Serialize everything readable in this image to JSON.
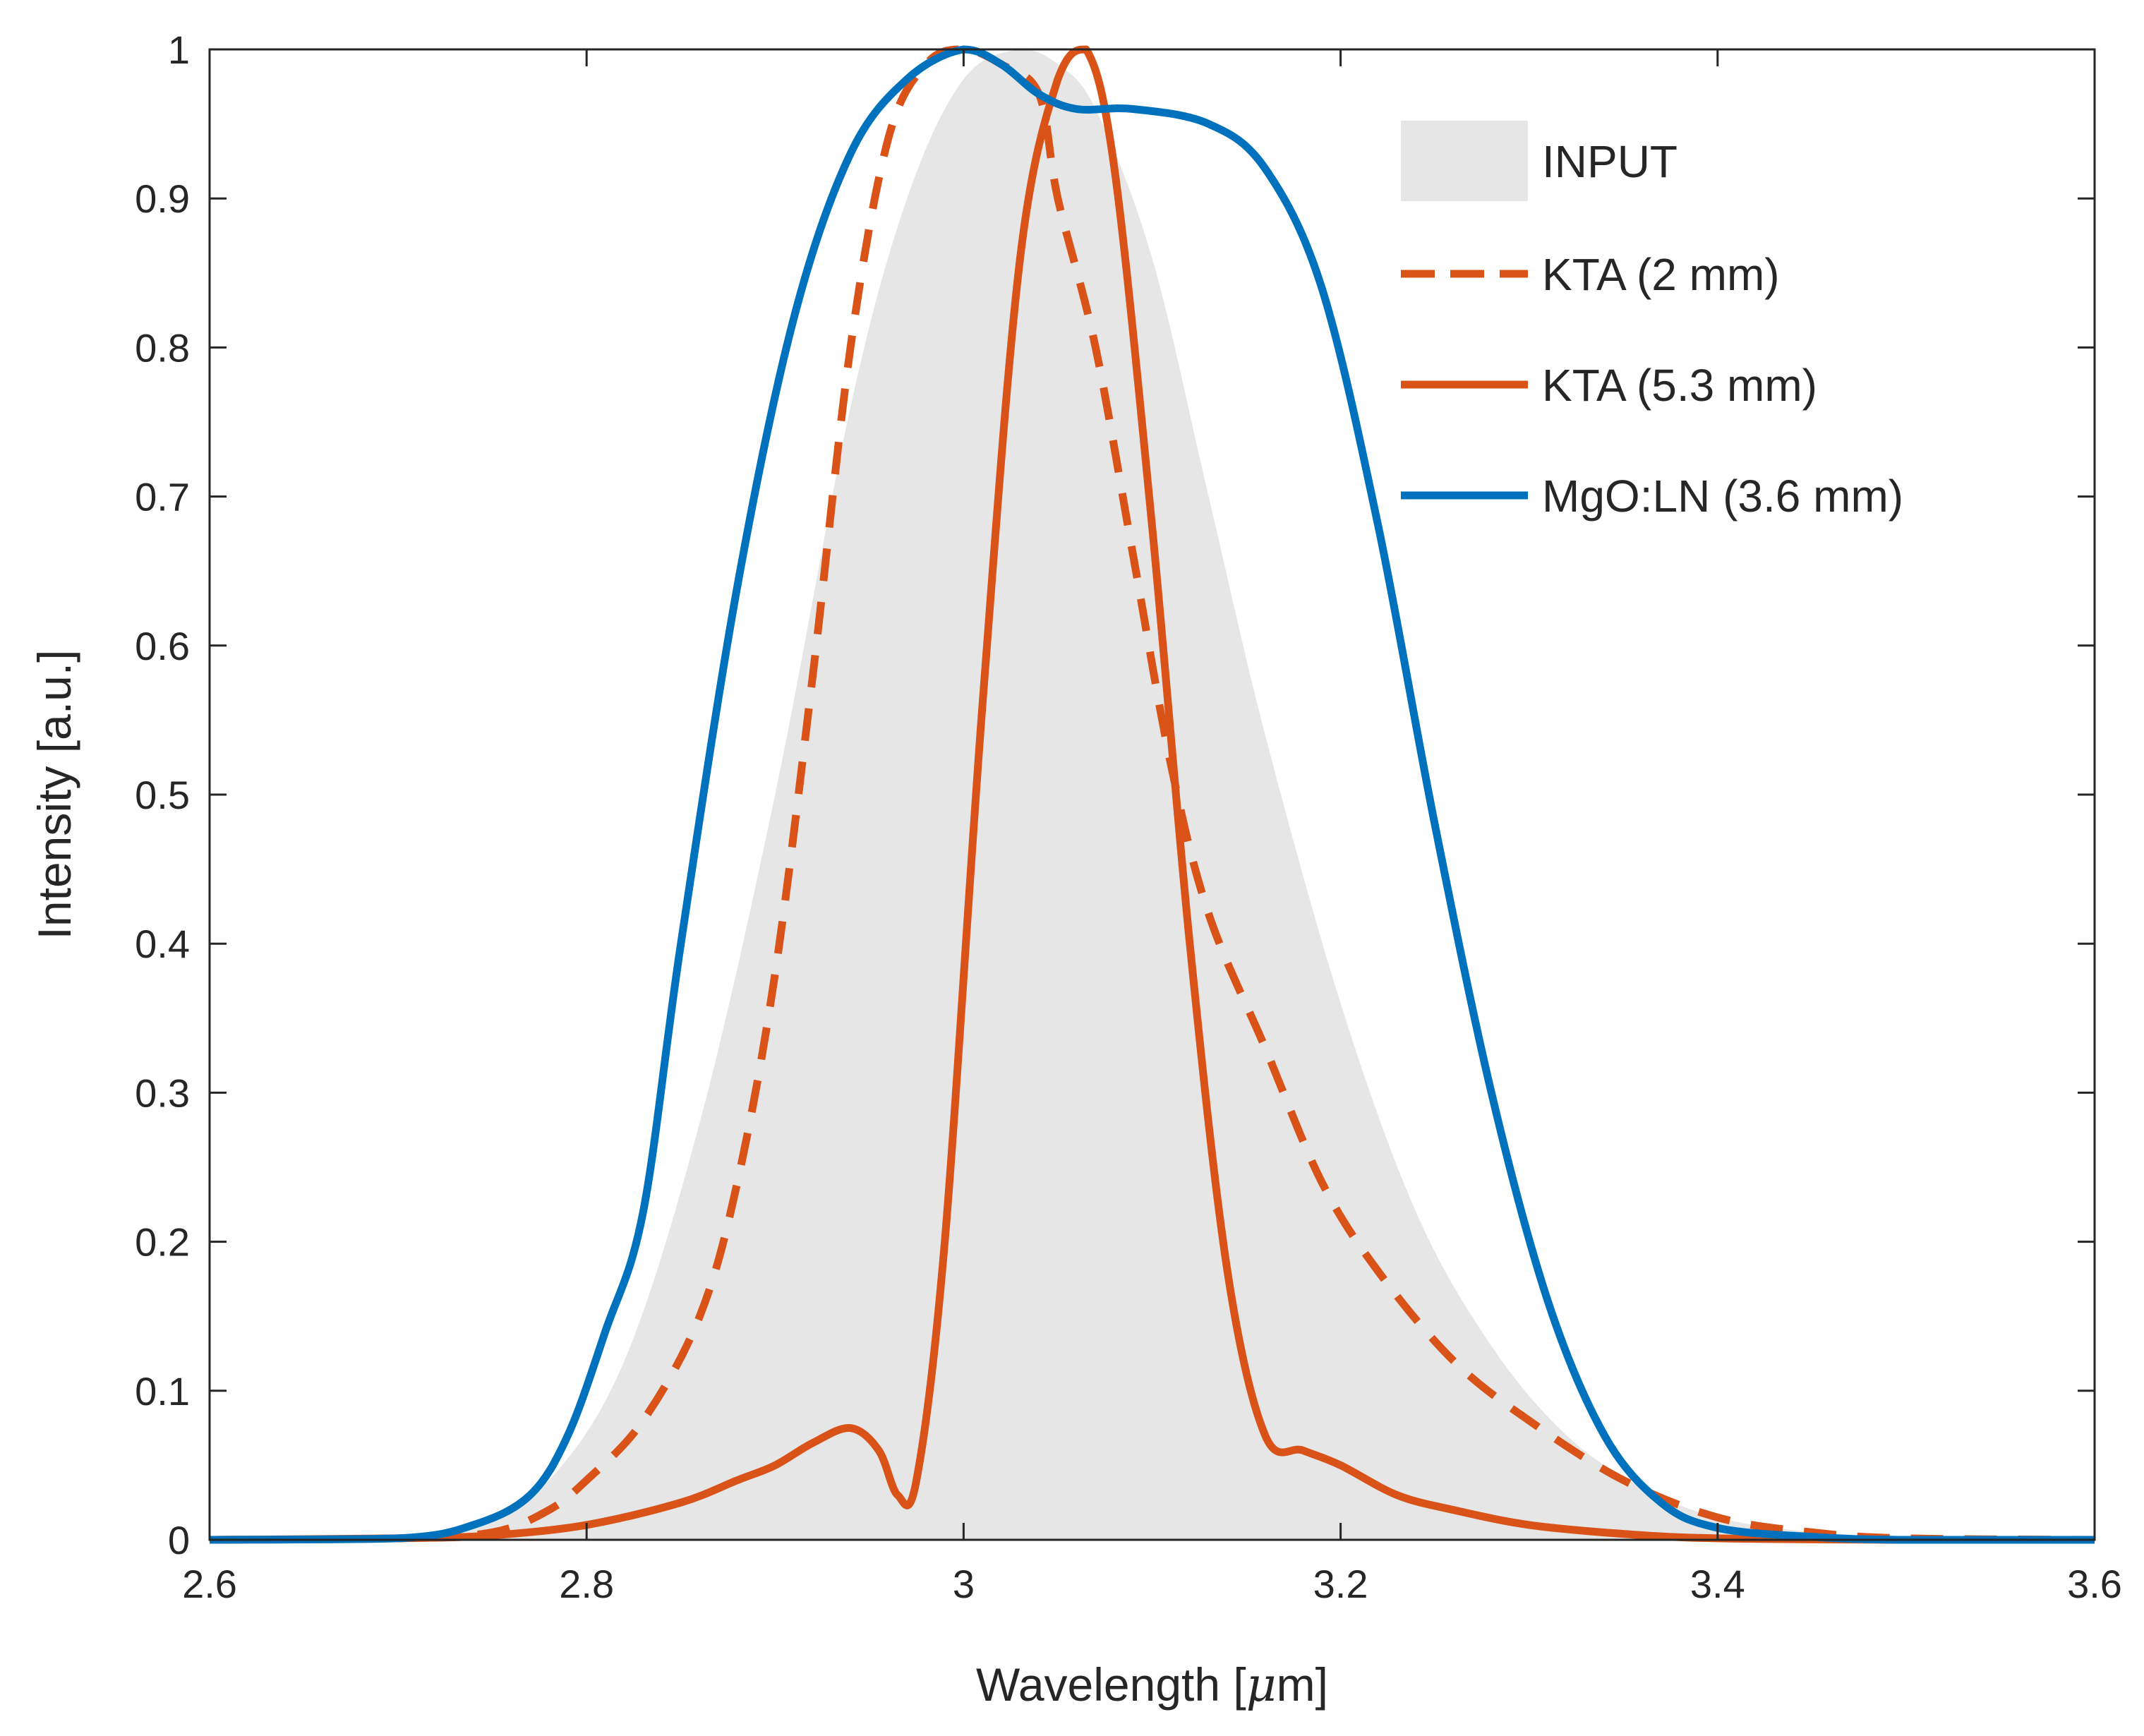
{
  "chart_data": {
    "type": "area",
    "title": "",
    "xlabel_prefix": "Wavelength [",
    "xlabel_mu": "μ",
    "xlabel_suffix": "m]",
    "ylabel": "Intensity [a.u.]",
    "xlim": [
      2.6,
      3.6
    ],
    "ylim": [
      0,
      1
    ],
    "xticks": [
      2.6,
      2.8,
      3,
      3.2,
      3.4,
      3.6
    ],
    "xtick_labels": [
      "2.6",
      "2.8",
      "3",
      "3.2",
      "3.4",
      "3.6"
    ],
    "yticks": [
      0,
      0.1,
      0.2,
      0.3,
      0.4,
      0.5,
      0.6,
      0.7,
      0.8,
      0.9,
      1
    ],
    "ytick_labels": [
      "0",
      "0.1",
      "0.2",
      "0.3",
      "0.4",
      "0.5",
      "0.6",
      "0.7",
      "0.8",
      "0.9",
      "1"
    ],
    "grid": false,
    "legend_position": "top-right",
    "series": [
      {
        "name": "INPUT",
        "style": "filled-area",
        "color": "#e6e6e6",
        "x": [
          2.6,
          2.7,
          2.74,
          2.78,
          2.82,
          2.86,
          2.9,
          2.94,
          2.97,
          3.0,
          3.03,
          3.05,
          3.07,
          3.1,
          3.13,
          3.16,
          3.2,
          3.24,
          3.28,
          3.32,
          3.36,
          3.4,
          3.45,
          3.5,
          3.6
        ],
        "y": [
          0,
          0.001,
          0.01,
          0.04,
          0.12,
          0.28,
          0.5,
          0.76,
          0.9,
          0.98,
          1.0,
          0.99,
          0.96,
          0.86,
          0.7,
          0.54,
          0.36,
          0.22,
          0.13,
          0.07,
          0.035,
          0.015,
          0.005,
          0.001,
          0
        ]
      },
      {
        "name": "KTA (2 mm)",
        "style": "dashed",
        "color": "#d95319",
        "x": [
          2.6,
          2.7,
          2.75,
          2.78,
          2.8,
          2.83,
          2.86,
          2.88,
          2.9,
          2.92,
          2.94,
          2.96,
          2.98,
          3.0,
          3.02,
          3.04,
          3.05,
          3.07,
          3.09,
          3.11,
          3.13,
          3.16,
          3.19,
          3.22,
          3.26,
          3.3,
          3.35,
          3.4,
          3.45,
          3.5,
          3.6
        ],
        "y": [
          0,
          0.001,
          0.005,
          0.02,
          0.04,
          0.08,
          0.15,
          0.24,
          0.38,
          0.58,
          0.8,
          0.94,
          0.99,
          1.0,
          0.99,
          0.97,
          0.9,
          0.8,
          0.66,
          0.52,
          0.42,
          0.33,
          0.24,
          0.18,
          0.12,
          0.08,
          0.04,
          0.015,
          0.005,
          0.001,
          0
        ]
      },
      {
        "name": "KTA (5.3 mm)",
        "style": "solid",
        "color": "#d95319",
        "x": [
          2.6,
          2.7,
          2.75,
          2.8,
          2.85,
          2.88,
          2.9,
          2.92,
          2.94,
          2.955,
          2.965,
          2.975,
          2.99,
          3.01,
          3.03,
          3.05,
          3.065,
          3.08,
          3.1,
          3.12,
          3.14,
          3.16,
          3.18,
          3.2,
          3.23,
          3.26,
          3.3,
          3.35,
          3.4,
          3.5,
          3.6
        ],
        "y": [
          0,
          0.001,
          0.003,
          0.01,
          0.025,
          0.04,
          0.05,
          0.065,
          0.075,
          0.06,
          0.03,
          0.04,
          0.2,
          0.56,
          0.86,
          0.98,
          1.0,
          0.92,
          0.68,
          0.4,
          0.18,
          0.07,
          0.06,
          0.05,
          0.03,
          0.02,
          0.01,
          0.004,
          0.001,
          0,
          0
        ]
      },
      {
        "name": "MgO:LN (3.6 mm)",
        "style": "solid",
        "color": "#0072bd",
        "x": [
          2.6,
          2.7,
          2.74,
          2.77,
          2.79,
          2.81,
          2.83,
          2.85,
          2.88,
          2.91,
          2.94,
          2.97,
          3.0,
          3.02,
          3.04,
          3.06,
          3.09,
          3.13,
          3.16,
          3.19,
          3.22,
          3.25,
          3.28,
          3.31,
          3.34,
          3.37,
          3.4,
          3.45,
          3.5,
          3.6
        ],
        "y": [
          0,
          0.001,
          0.01,
          0.03,
          0.07,
          0.14,
          0.22,
          0.4,
          0.64,
          0.82,
          0.93,
          0.98,
          1.0,
          0.99,
          0.97,
          0.96,
          0.96,
          0.95,
          0.92,
          0.84,
          0.68,
          0.48,
          0.3,
          0.16,
          0.07,
          0.025,
          0.008,
          0.002,
          0,
          0
        ]
      }
    ]
  }
}
